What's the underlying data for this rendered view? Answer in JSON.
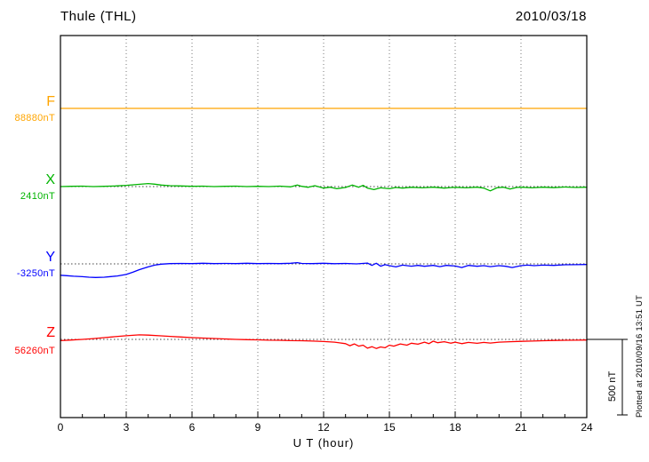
{
  "header": {
    "station": "Thule (THL)",
    "date": "2010/03/18"
  },
  "annotations": {
    "plotted_at": "Plotted at 2010/09/16 13:51 UT"
  },
  "chart_data": {
    "type": "line",
    "title": "Thule (THL)",
    "subtitle": "2010/03/18",
    "xlabel": "U T (hour)",
    "ylabel": "nT",
    "xlim": [
      0,
      24
    ],
    "x_ticks": [
      0,
      3,
      6,
      9,
      12,
      15,
      18,
      21,
      24
    ],
    "grid": "dotted-vertical-at-major-ticks",
    "legend_position": "left-margin",
    "scale_bar": {
      "label": "500 nT",
      "nT": 500
    },
    "series": [
      {
        "name": "F",
        "baseline_nT": 88880,
        "baseline_label": "88880nT",
        "color": "#ffa500",
        "points": [
          [
            0,
            0
          ],
          [
            24,
            0
          ]
        ]
      },
      {
        "name": "X",
        "baseline_nT": 2410,
        "baseline_label": "2410nT",
        "color": "#00b400",
        "points": [
          [
            0,
            0
          ],
          [
            0.5,
            2
          ],
          [
            1,
            3
          ],
          [
            1.5,
            0
          ],
          [
            2,
            2
          ],
          [
            2.5,
            4
          ],
          [
            3,
            8
          ],
          [
            3.5,
            14
          ],
          [
            4,
            20
          ],
          [
            4.3,
            16
          ],
          [
            4.6,
            10
          ],
          [
            5,
            6
          ],
          [
            5.5,
            4
          ],
          [
            6,
            2
          ],
          [
            6.5,
            3
          ],
          [
            7,
            0
          ],
          [
            7.5,
            2
          ],
          [
            8,
            3
          ],
          [
            8.5,
            0
          ],
          [
            9,
            2
          ],
          [
            9.5,
            0
          ],
          [
            10,
            3
          ],
          [
            10.5,
            -2
          ],
          [
            10.8,
            10
          ],
          [
            11,
            2
          ],
          [
            11.3,
            -5
          ],
          [
            11.6,
            6
          ],
          [
            12,
            -10
          ],
          [
            12.3,
            -4
          ],
          [
            12.6,
            -14
          ],
          [
            13,
            -6
          ],
          [
            13.3,
            10
          ],
          [
            13.6,
            -4
          ],
          [
            13.8,
            8
          ],
          [
            14,
            -10
          ],
          [
            14.3,
            -20
          ],
          [
            14.6,
            -8
          ],
          [
            15,
            -14
          ],
          [
            15.3,
            -6
          ],
          [
            15.6,
            -10
          ],
          [
            16,
            -5
          ],
          [
            16.5,
            -8
          ],
          [
            17,
            -4
          ],
          [
            17.5,
            -10
          ],
          [
            18,
            -5
          ],
          [
            18.5,
            -8
          ],
          [
            19,
            -4
          ],
          [
            19.3,
            -10
          ],
          [
            19.6,
            -28
          ],
          [
            19.9,
            -8
          ],
          [
            20.2,
            -4
          ],
          [
            20.5,
            -16
          ],
          [
            20.8,
            -6
          ],
          [
            21,
            -4
          ],
          [
            21.5,
            -8
          ],
          [
            22,
            -4
          ],
          [
            22.5,
            -7
          ],
          [
            23,
            -3
          ],
          [
            23.5,
            -6
          ],
          [
            24,
            -4
          ]
        ]
      },
      {
        "name": "Y",
        "baseline_nT": -3250,
        "baseline_label": "-3250nT",
        "color": "#0000ff",
        "points": [
          [
            0,
            -75
          ],
          [
            0.3,
            -78
          ],
          [
            0.6,
            -82
          ],
          [
            1,
            -85
          ],
          [
            1.3,
            -88
          ],
          [
            1.6,
            -90
          ],
          [
            2,
            -88
          ],
          [
            2.3,
            -84
          ],
          [
            2.6,
            -80
          ],
          [
            3,
            -70
          ],
          [
            3.3,
            -55
          ],
          [
            3.6,
            -38
          ],
          [
            4,
            -20
          ],
          [
            4.3,
            -8
          ],
          [
            4.6,
            -2
          ],
          [
            5,
            2
          ],
          [
            5.5,
            3
          ],
          [
            6,
            2
          ],
          [
            6.5,
            4
          ],
          [
            7,
            2
          ],
          [
            7.5,
            3
          ],
          [
            8,
            2
          ],
          [
            8.5,
            4
          ],
          [
            9,
            2
          ],
          [
            9.5,
            3
          ],
          [
            10,
            2
          ],
          [
            10.5,
            4
          ],
          [
            10.8,
            8
          ],
          [
            11,
            3
          ],
          [
            11.5,
            2
          ],
          [
            12,
            4
          ],
          [
            12.5,
            1
          ],
          [
            13,
            3
          ],
          [
            13.5,
            0
          ],
          [
            14,
            5
          ],
          [
            14.2,
            -10
          ],
          [
            14.4,
            4
          ],
          [
            14.6,
            -15
          ],
          [
            14.8,
            -5
          ],
          [
            15,
            -12
          ],
          [
            15.3,
            -20
          ],
          [
            15.6,
            -8
          ],
          [
            16,
            -15
          ],
          [
            16.3,
            -10
          ],
          [
            16.6,
            -16
          ],
          [
            17,
            -10
          ],
          [
            17.3,
            -18
          ],
          [
            17.6,
            -10
          ],
          [
            18,
            -14
          ],
          [
            18.3,
            -24
          ],
          [
            18.6,
            -10
          ],
          [
            19,
            -16
          ],
          [
            19.3,
            -12
          ],
          [
            19.6,
            -18
          ],
          [
            20,
            -12
          ],
          [
            20.3,
            -16
          ],
          [
            20.6,
            -24
          ],
          [
            21,
            -12
          ],
          [
            21.3,
            -8
          ],
          [
            21.6,
            -12
          ],
          [
            22,
            -8
          ],
          [
            22.5,
            -10
          ],
          [
            23,
            -6
          ],
          [
            23.5,
            -5
          ],
          [
            24,
            -4
          ]
        ]
      },
      {
        "name": "Z",
        "baseline_nT": 56260,
        "baseline_label": "56260nT",
        "color": "#ff0000",
        "points": [
          [
            0,
            -8
          ],
          [
            0.5,
            -4
          ],
          [
            1,
            0
          ],
          [
            1.5,
            5
          ],
          [
            2,
            12
          ],
          [
            2.5,
            18
          ],
          [
            3,
            24
          ],
          [
            3.3,
            27
          ],
          [
            3.6,
            30
          ],
          [
            4,
            28
          ],
          [
            4.5,
            24
          ],
          [
            5,
            20
          ],
          [
            5.5,
            16
          ],
          [
            6,
            12
          ],
          [
            6.5,
            9
          ],
          [
            7,
            6
          ],
          [
            7.5,
            3
          ],
          [
            8,
            0
          ],
          [
            8.5,
            -2
          ],
          [
            9,
            -3
          ],
          [
            9.5,
            -5
          ],
          [
            10,
            -6
          ],
          [
            10.5,
            -8
          ],
          [
            11,
            -9
          ],
          [
            11.5,
            -11
          ],
          [
            12,
            -14
          ],
          [
            12.5,
            -18
          ],
          [
            13,
            -28
          ],
          [
            13.2,
            -42
          ],
          [
            13.4,
            -30
          ],
          [
            13.6,
            -45
          ],
          [
            13.8,
            -38
          ],
          [
            14,
            -58
          ],
          [
            14.2,
            -48
          ],
          [
            14.4,
            -60
          ],
          [
            14.6,
            -50
          ],
          [
            14.8,
            -55
          ],
          [
            15,
            -38
          ],
          [
            15.2,
            -45
          ],
          [
            15.5,
            -30
          ],
          [
            15.8,
            -38
          ],
          [
            16,
            -25
          ],
          [
            16.3,
            -32
          ],
          [
            16.6,
            -18
          ],
          [
            16.8,
            -28
          ],
          [
            17,
            -12
          ],
          [
            17.2,
            -22
          ],
          [
            17.5,
            -15
          ],
          [
            17.8,
            -25
          ],
          [
            18,
            -18
          ],
          [
            18.3,
            -28
          ],
          [
            18.6,
            -20
          ],
          [
            19,
            -26
          ],
          [
            19.3,
            -20
          ],
          [
            19.6,
            -24
          ],
          [
            20,
            -18
          ],
          [
            20.5,
            -15
          ],
          [
            21,
            -13
          ],
          [
            21.5,
            -11
          ],
          [
            22,
            -9
          ],
          [
            22.5,
            -7
          ],
          [
            23,
            -6
          ],
          [
            23.5,
            -5
          ],
          [
            24,
            -4
          ]
        ]
      }
    ]
  }
}
